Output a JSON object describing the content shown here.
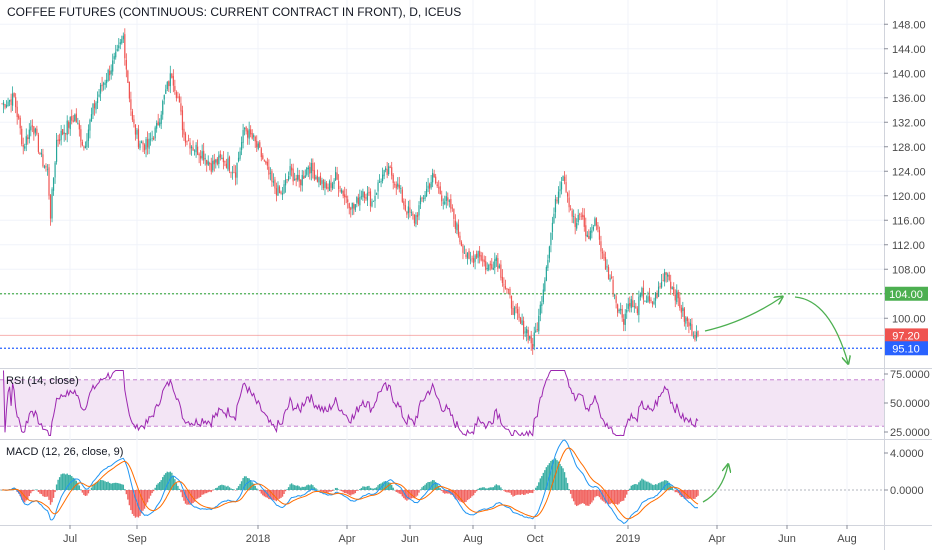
{
  "title": "COFFEE FUTURES (CONTINUOUS: CURRENT CONTRACT IN FRONT), D, ICEUS",
  "price_axis": {
    "ticks": [
      "148.00",
      "144.00",
      "140.00",
      "136.00",
      "132.00",
      "128.00",
      "124.00",
      "120.00",
      "116.00",
      "112.00",
      "108.00",
      "104.00",
      "100.00"
    ]
  },
  "levels": {
    "resistance": {
      "label": "104.00",
      "value": 104.0,
      "color": "#4caf50"
    },
    "last": {
      "label": "97.20",
      "value": 97.2,
      "color": "#ef5350"
    },
    "support": {
      "label": "95.10",
      "value": 95.1,
      "color": "#2962ff"
    }
  },
  "rsi": {
    "title": "RSI (14, close)",
    "ticks": [
      "75.0000",
      "50.0000",
      "25.0000"
    ],
    "upper": 70,
    "lower": 30,
    "color": "#9c27b0",
    "band_color": "#f3e5f5"
  },
  "macd": {
    "title": "MACD (12, 26, close, 9)",
    "ticks": [
      "4.0000",
      "0.0000"
    ],
    "macd_color": "#2196f3",
    "signal_color": "#ff6d00",
    "hist_up": "#26a69a",
    "hist_down": "#ef5350"
  },
  "time_axis": [
    "Jul",
    "Sep",
    "2018",
    "Apr",
    "Jun",
    "Aug",
    "Oct",
    "2019",
    "Apr",
    "Jun",
    "Aug"
  ],
  "colors": {
    "up": "#26a69a",
    "down": "#ef5350",
    "projection": "#4caf50"
  },
  "chart_data": {
    "type": "candlestick",
    "timeframe": "D",
    "ylim": [
      93,
      150
    ],
    "anchors": [
      [
        0,
        135
      ],
      [
        8,
        136
      ],
      [
        14,
        128
      ],
      [
        20,
        132
      ],
      [
        26,
        126
      ],
      [
        30,
        124
      ],
      [
        32,
        117
      ],
      [
        36,
        129
      ],
      [
        42,
        131
      ],
      [
        48,
        133
      ],
      [
        54,
        128
      ],
      [
        60,
        134
      ],
      [
        66,
        138
      ],
      [
        70,
        140
      ],
      [
        76,
        143
      ],
      [
        80,
        146
      ],
      [
        82,
        141
      ],
      [
        86,
        132
      ],
      [
        90,
        129
      ],
      [
        96,
        128
      ],
      [
        102,
        131
      ],
      [
        108,
        137
      ],
      [
        112,
        140
      ],
      [
        116,
        136
      ],
      [
        120,
        130
      ],
      [
        126,
        128
      ],
      [
        132,
        127
      ],
      [
        138,
        125
      ],
      [
        146,
        126
      ],
      [
        154,
        124
      ],
      [
        160,
        131
      ],
      [
        166,
        129
      ],
      [
        172,
        126
      ],
      [
        178,
        122
      ],
      [
        184,
        120
      ],
      [
        190,
        124
      ],
      [
        196,
        122
      ],
      [
        202,
        125
      ],
      [
        208,
        123
      ],
      [
        214,
        121
      ],
      [
        220,
        123
      ],
      [
        226,
        120
      ],
      [
        232,
        118
      ],
      [
        238,
        121
      ],
      [
        244,
        119
      ],
      [
        250,
        123
      ],
      [
        256,
        124
      ],
      [
        262,
        121
      ],
      [
        266,
        118
      ],
      [
        272,
        116
      ],
      [
        278,
        120
      ],
      [
        284,
        123
      ],
      [
        290,
        120
      ],
      [
        296,
        118
      ],
      [
        302,
        113
      ],
      [
        308,
        109
      ],
      [
        314,
        111
      ],
      [
        320,
        108
      ],
      [
        326,
        110
      ],
      [
        332,
        105
      ],
      [
        338,
        101
      ],
      [
        342,
        99
      ],
      [
        346,
        98
      ],
      [
        350,
        95.6
      ],
      [
        354,
        100
      ],
      [
        358,
        107
      ],
      [
        362,
        114
      ],
      [
        366,
        120
      ],
      [
        370,
        124
      ],
      [
        374,
        119
      ],
      [
        378,
        115
      ],
      [
        382,
        117
      ],
      [
        386,
        113
      ],
      [
        392,
        116
      ],
      [
        396,
        110
      ],
      [
        402,
        106
      ],
      [
        406,
        102
      ],
      [
        410,
        100
      ],
      [
        414,
        103
      ],
      [
        418,
        101
      ],
      [
        422,
        104
      ],
      [
        428,
        102
      ],
      [
        434,
        105
      ],
      [
        438,
        108
      ],
      [
        442,
        105
      ],
      [
        446,
        103
      ],
      [
        450,
        100
      ],
      [
        454,
        98.5
      ],
      [
        458,
        97.2
      ]
    ],
    "rsi": {
      "ylim": [
        20,
        80
      ],
      "upper": 70,
      "lower": 30
    },
    "macd": {
      "ylim": [
        -5.5,
        6.0
      ]
    }
  }
}
